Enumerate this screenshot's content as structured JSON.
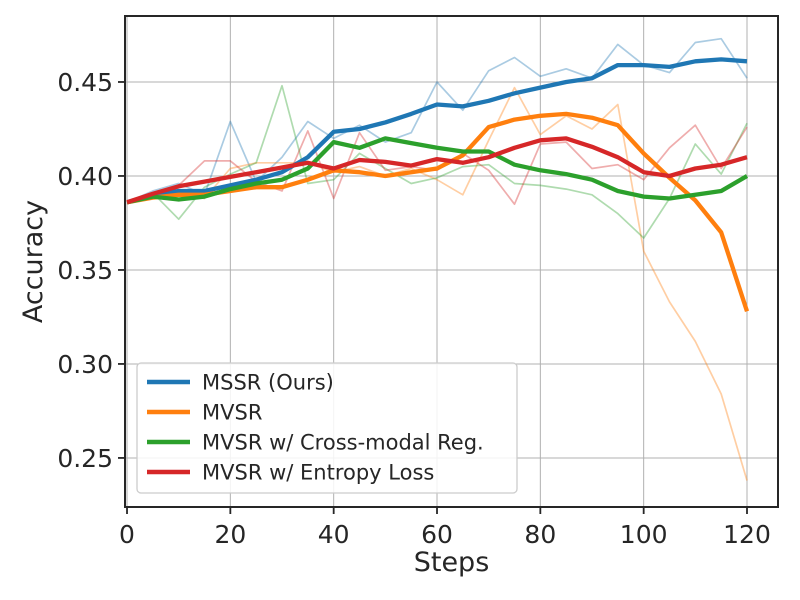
{
  "figure": {
    "background": "#ffffff",
    "grid_color": "#b0b0b0",
    "spine_color": "#262626",
    "text_color": "#262626"
  },
  "chart_data": {
    "type": "line",
    "title": "",
    "xlabel": "Steps",
    "ylabel": "Accuracy",
    "grid": true,
    "legend_position": "lower left",
    "xlim": [
      -0.39,
      126.0
    ],
    "ylim": [
      0.2239,
      0.4851
    ],
    "xticks": [
      0,
      20,
      40,
      60,
      80,
      100,
      120
    ],
    "xtick_labels": [
      "0",
      "20",
      "40",
      "60",
      "80",
      "100",
      "120"
    ],
    "yticks": [
      0.25,
      0.3,
      0.35,
      0.4,
      0.45
    ],
    "ytick_labels": [
      "0.25",
      "0.30",
      "0.35",
      "0.40",
      "0.45"
    ],
    "x": [
      0,
      5,
      10,
      15,
      20,
      25,
      30,
      35,
      40,
      45,
      50,
      55,
      60,
      65,
      70,
      75,
      80,
      85,
      90,
      95,
      100,
      105,
      110,
      115,
      120
    ],
    "legend_entries": [
      "MSSR (Ours)",
      "MVSR",
      "MVSR w/ Cross-modal Reg.",
      "MVSR w/ Entropy Loss"
    ],
    "series": [
      {
        "id": "mssr-raw",
        "name": "MSSR (Ours)",
        "role": "raw",
        "color": "#1f77b4",
        "opacity": 0.38,
        "width": "thin",
        "values": [
          0.386,
          0.392,
          0.396,
          0.39,
          0.429,
          0.397,
          0.41,
          0.429,
          0.42,
          0.427,
          0.418,
          0.423,
          0.45,
          0.435,
          0.456,
          0.463,
          0.453,
          0.457,
          0.452,
          0.47,
          0.459,
          0.455,
          0.471,
          0.473,
          0.452
        ]
      },
      {
        "id": "mvsr-raw",
        "name": "MVSR",
        "role": "raw",
        "color": "#ff7f0e",
        "opacity": 0.38,
        "width": "thin",
        "values": [
          0.386,
          0.388,
          0.392,
          0.388,
          0.404,
          0.407,
          0.407,
          0.407,
          0.402,
          0.405,
          0.4,
          0.404,
          0.398,
          0.39,
          0.419,
          0.447,
          0.422,
          0.432,
          0.425,
          0.438,
          0.36,
          0.333,
          0.312,
          0.284,
          0.238
        ]
      },
      {
        "id": "mvsr-cross-modal-raw",
        "name": "MVSR w/ Cross-modal Reg.",
        "role": "raw",
        "color": "#2ca02c",
        "opacity": 0.38,
        "width": "thin",
        "values": [
          0.386,
          0.391,
          0.377,
          0.394,
          0.401,
          0.407,
          0.448,
          0.396,
          0.398,
          0.412,
          0.404,
          0.396,
          0.399,
          0.405,
          0.406,
          0.396,
          0.395,
          0.393,
          0.39,
          0.38,
          0.367,
          0.388,
          0.417,
          0.401,
          0.428
        ]
      },
      {
        "id": "mvsr-entropy-raw",
        "name": "MVSR w/ Entropy Loss",
        "role": "raw",
        "color": "#d62728",
        "opacity": 0.38,
        "width": "thin",
        "values": [
          0.386,
          0.39,
          0.395,
          0.408,
          0.408,
          0.397,
          0.392,
          0.424,
          0.388,
          0.423,
          0.403,
          0.405,
          0.403,
          0.412,
          0.403,
          0.385,
          0.417,
          0.418,
          0.404,
          0.406,
          0.398,
          0.415,
          0.427,
          0.404,
          0.426
        ]
      },
      {
        "id": "mssr",
        "name": "MSSR (Ours)",
        "role": "smoothed",
        "color": "#1f77b4",
        "opacity": 1,
        "width": "bold",
        "values": [
          0.386,
          0.39,
          0.392,
          0.392,
          0.395,
          0.398,
          0.402,
          0.41,
          0.4235,
          0.425,
          0.4285,
          0.433,
          0.438,
          0.437,
          0.44,
          0.444,
          0.447,
          0.45,
          0.452,
          0.459,
          0.459,
          0.458,
          0.461,
          0.462,
          0.461
        ]
      },
      {
        "id": "mvsr",
        "name": "MVSR",
        "role": "smoothed",
        "color": "#ff7f0e",
        "opacity": 1,
        "width": "bold",
        "values": [
          0.386,
          0.3885,
          0.39,
          0.39,
          0.392,
          0.394,
          0.394,
          0.398,
          0.403,
          0.402,
          0.4,
          0.402,
          0.404,
          0.411,
          0.426,
          0.43,
          0.432,
          0.433,
          0.431,
          0.427,
          0.412,
          0.399,
          0.387,
          0.37,
          0.328
        ]
      },
      {
        "id": "mvsr-cross-modal",
        "name": "MVSR w/ Cross-modal Reg.",
        "role": "smoothed",
        "color": "#2ca02c",
        "opacity": 1,
        "width": "bold",
        "values": [
          0.386,
          0.389,
          0.3875,
          0.389,
          0.393,
          0.396,
          0.398,
          0.404,
          0.418,
          0.415,
          0.42,
          0.4175,
          0.415,
          0.413,
          0.413,
          0.406,
          0.403,
          0.401,
          0.398,
          0.392,
          0.389,
          0.388,
          0.39,
          0.392,
          0.4
        ]
      },
      {
        "id": "mvsr-entropy",
        "name": "MVSR w/ Entropy Loss",
        "role": "smoothed",
        "color": "#d62728",
        "opacity": 1,
        "width": "bold",
        "values": [
          0.386,
          0.3905,
          0.3945,
          0.397,
          0.3995,
          0.402,
          0.4045,
          0.407,
          0.404,
          0.4085,
          0.4075,
          0.4055,
          0.409,
          0.407,
          0.41,
          0.415,
          0.419,
          0.42,
          0.4155,
          0.41,
          0.402,
          0.4,
          0.404,
          0.406,
          0.41
        ]
      }
    ]
  }
}
